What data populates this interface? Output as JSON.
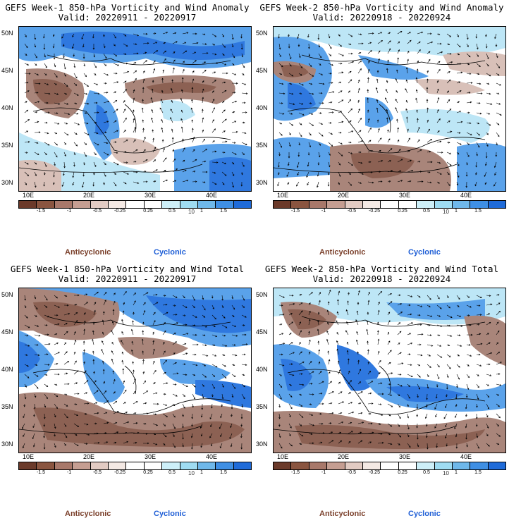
{
  "panels": [
    {
      "title": "GEFS Week-1 850-hPa Vorticity and Wind Anomaly",
      "valid": "Valid: 20220911 - 20220917"
    },
    {
      "title": "GEFS Week-2 850-hPa Vorticity and Wind Anomaly",
      "valid": "Valid: 20220918 - 20220924"
    },
    {
      "title": "GEFS Week-1 850-hPa Vorticity and Wind Total",
      "valid": "Valid: 20220911 - 20220917"
    },
    {
      "title": "GEFS Week-2 850-hPa Vorticity and Wind Total",
      "valid": "Valid: 20220918 - 20220924"
    }
  ],
  "axes": {
    "lat_labels": [
      "50N",
      "45N",
      "40N",
      "35N",
      "30N"
    ],
    "lon_labels": [
      "10E",
      "20E",
      "30E",
      "40E"
    ]
  },
  "colorbar": {
    "labels": [
      "-1.5",
      "-1",
      "-0.5",
      "-0.25",
      "0.25",
      "0.5",
      "1",
      "1.5"
    ],
    "scale_note": "10",
    "colors": [
      "#6b3a2a",
      "#8a5540",
      "#a8786a",
      "#c59e92",
      "#e2cbc3",
      "#f4e9e4",
      "#ffffff",
      "#ffffff",
      "#cdeff8",
      "#9fdcf2",
      "#6fb8ea",
      "#3f8fe4",
      "#1f6bd9"
    ]
  },
  "legend": {
    "anticyclonic": "Anticyclonic",
    "cyclonic": "Cyclonic"
  },
  "colors": {
    "anticyclonic": "#7a3f2a",
    "cyclonic": "#1f5fd6",
    "brown_dark": "#8c6153",
    "brown_mid": "#a9857a",
    "brown_light": "#d8c0b8",
    "blue_dark": "#2f78df",
    "blue_mid": "#5aa2ea",
    "blue_light": "#bde6f6"
  }
}
